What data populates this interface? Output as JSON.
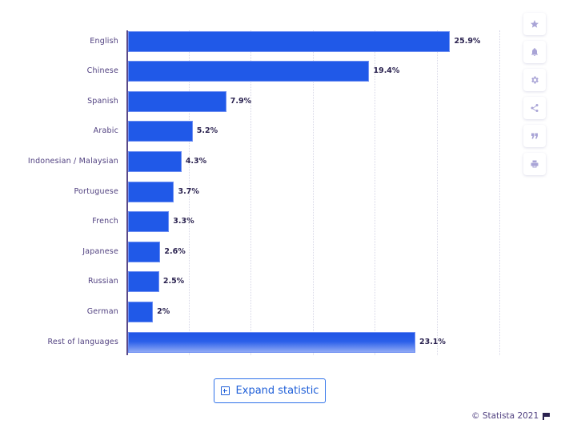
{
  "chart_data": {
    "type": "bar",
    "orientation": "horizontal",
    "title": "",
    "xlabel": "",
    "ylabel": "",
    "xlim": [
      0,
      30
    ],
    "grid": true,
    "categories": [
      "English",
      "Chinese",
      "Spanish",
      "Arabic",
      "Indonesian / Malaysian",
      "Portuguese",
      "French",
      "Japanese",
      "Russian",
      "German",
      "Rest of languages"
    ],
    "values": [
      25.9,
      19.4,
      7.9,
      5.2,
      4.3,
      3.7,
      3.3,
      2.6,
      2.5,
      2,
      23.1
    ],
    "value_labels": [
      "25.9%",
      "19.4%",
      "7.9%",
      "5.2%",
      "4.3%",
      "3.7%",
      "3.3%",
      "2.6%",
      "2.5%",
      "2%",
      "23.1%"
    ],
    "bar_color": "#2059e8"
  },
  "rows": [
    {
      "label": "English",
      "value": 25.9,
      "display": "25.9%"
    },
    {
      "label": "Chinese",
      "value": 19.4,
      "display": "19.4%"
    },
    {
      "label": "Spanish",
      "value": 7.9,
      "display": "7.9%"
    },
    {
      "label": "Arabic",
      "value": 5.2,
      "display": "5.2%"
    },
    {
      "label": "Indonesian / Malaysian",
      "value": 4.3,
      "display": "4.3%"
    },
    {
      "label": "Portuguese",
      "value": 3.7,
      "display": "3.7%"
    },
    {
      "label": "French",
      "value": 3.3,
      "display": "3.3%"
    },
    {
      "label": "Japanese",
      "value": 2.6,
      "display": "2.6%"
    },
    {
      "label": "Russian",
      "value": 2.5,
      "display": "2.5%"
    },
    {
      "label": "German",
      "value": 2,
      "display": "2%"
    },
    {
      "label": "Rest of languages",
      "value": 23.1,
      "display": "23.1%"
    }
  ],
  "toolbar": {
    "items": [
      {
        "icon": "star-icon",
        "label": "Favorite"
      },
      {
        "icon": "bell-icon",
        "label": "Notifications"
      },
      {
        "icon": "gear-icon",
        "label": "Settings"
      },
      {
        "icon": "share-icon",
        "label": "Share"
      },
      {
        "icon": "quote-icon",
        "label": "Cite"
      },
      {
        "icon": "print-icon",
        "label": "Print"
      }
    ]
  },
  "expand_button": {
    "label": "Expand statistic"
  },
  "credit": {
    "text": "© Statista 2021"
  },
  "colors": {
    "bar": "#2059e8",
    "axis": "#5a4a8a",
    "label": "#4f3f7f",
    "accent": "#1f5fd8"
  }
}
